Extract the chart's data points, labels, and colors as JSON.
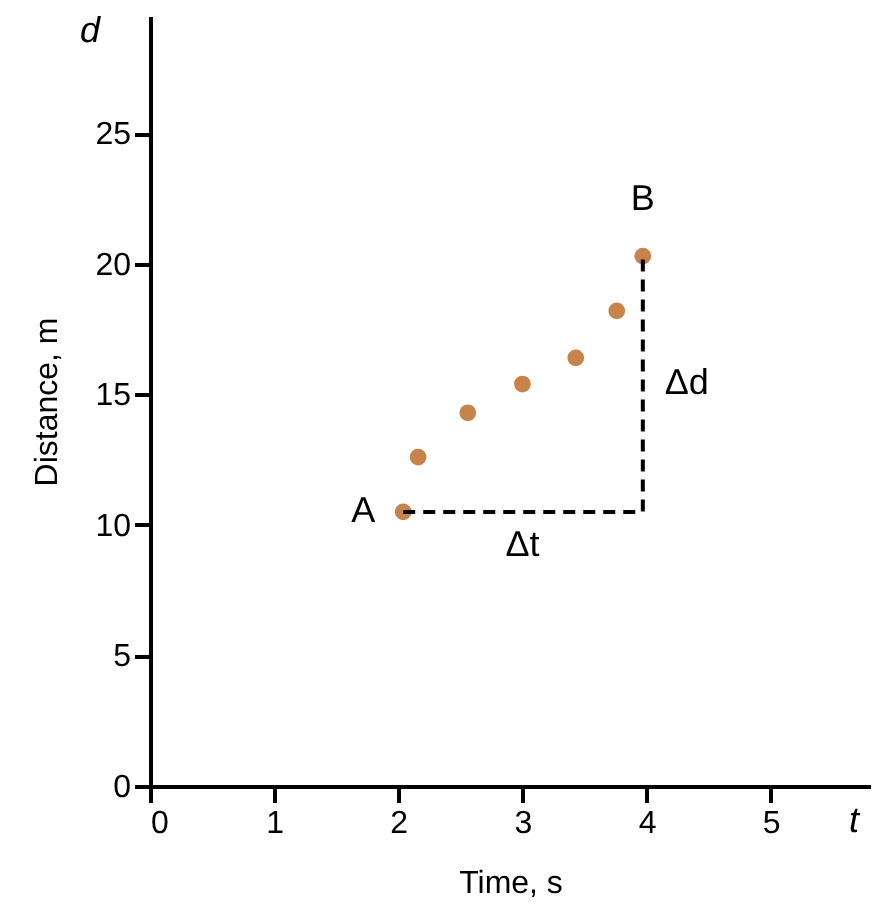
{
  "chart_data": {
    "type": "scatter",
    "xlabel": "Time, s",
    "ylabel": "Distance, m",
    "xlim": [
      0,
      5.8
    ],
    "ylim": [
      0,
      29.5
    ],
    "xticks": [
      0,
      1,
      2,
      3,
      4,
      5
    ],
    "yticks": [
      0,
      5,
      10,
      15,
      20,
      25
    ],
    "grid": false,
    "marker": "circle",
    "series": [
      {
        "color": "#c8834a",
        "x": [
          2.04,
          2.16,
          2.56,
          3.0,
          3.43,
          3.76,
          3.97
        ],
        "values": [
          10.5,
          12.6,
          14.3,
          15.4,
          16.4,
          18.2,
          20.3
        ]
      },
      {
        "type": "line",
        "marker": "none",
        "color": "#000000",
        "line_style": "dashed",
        "x": [
          2.04,
          3.97,
          3.97
        ],
        "values": [
          10.5,
          10.5,
          20.3
        ]
      }
    ],
    "annotations": [
      "d",
      "t",
      {
        "text": "A",
        "x": 2.04,
        "y": 10.5
      },
      {
        "text": "B",
        "x": 3.97,
        "y": 20.3
      },
      {
        "text": "Δt",
        "x": 3.0,
        "y": 10.5
      },
      {
        "text": "Δd",
        "x": 3.97,
        "y": 15.4
      }
    ]
  }
}
